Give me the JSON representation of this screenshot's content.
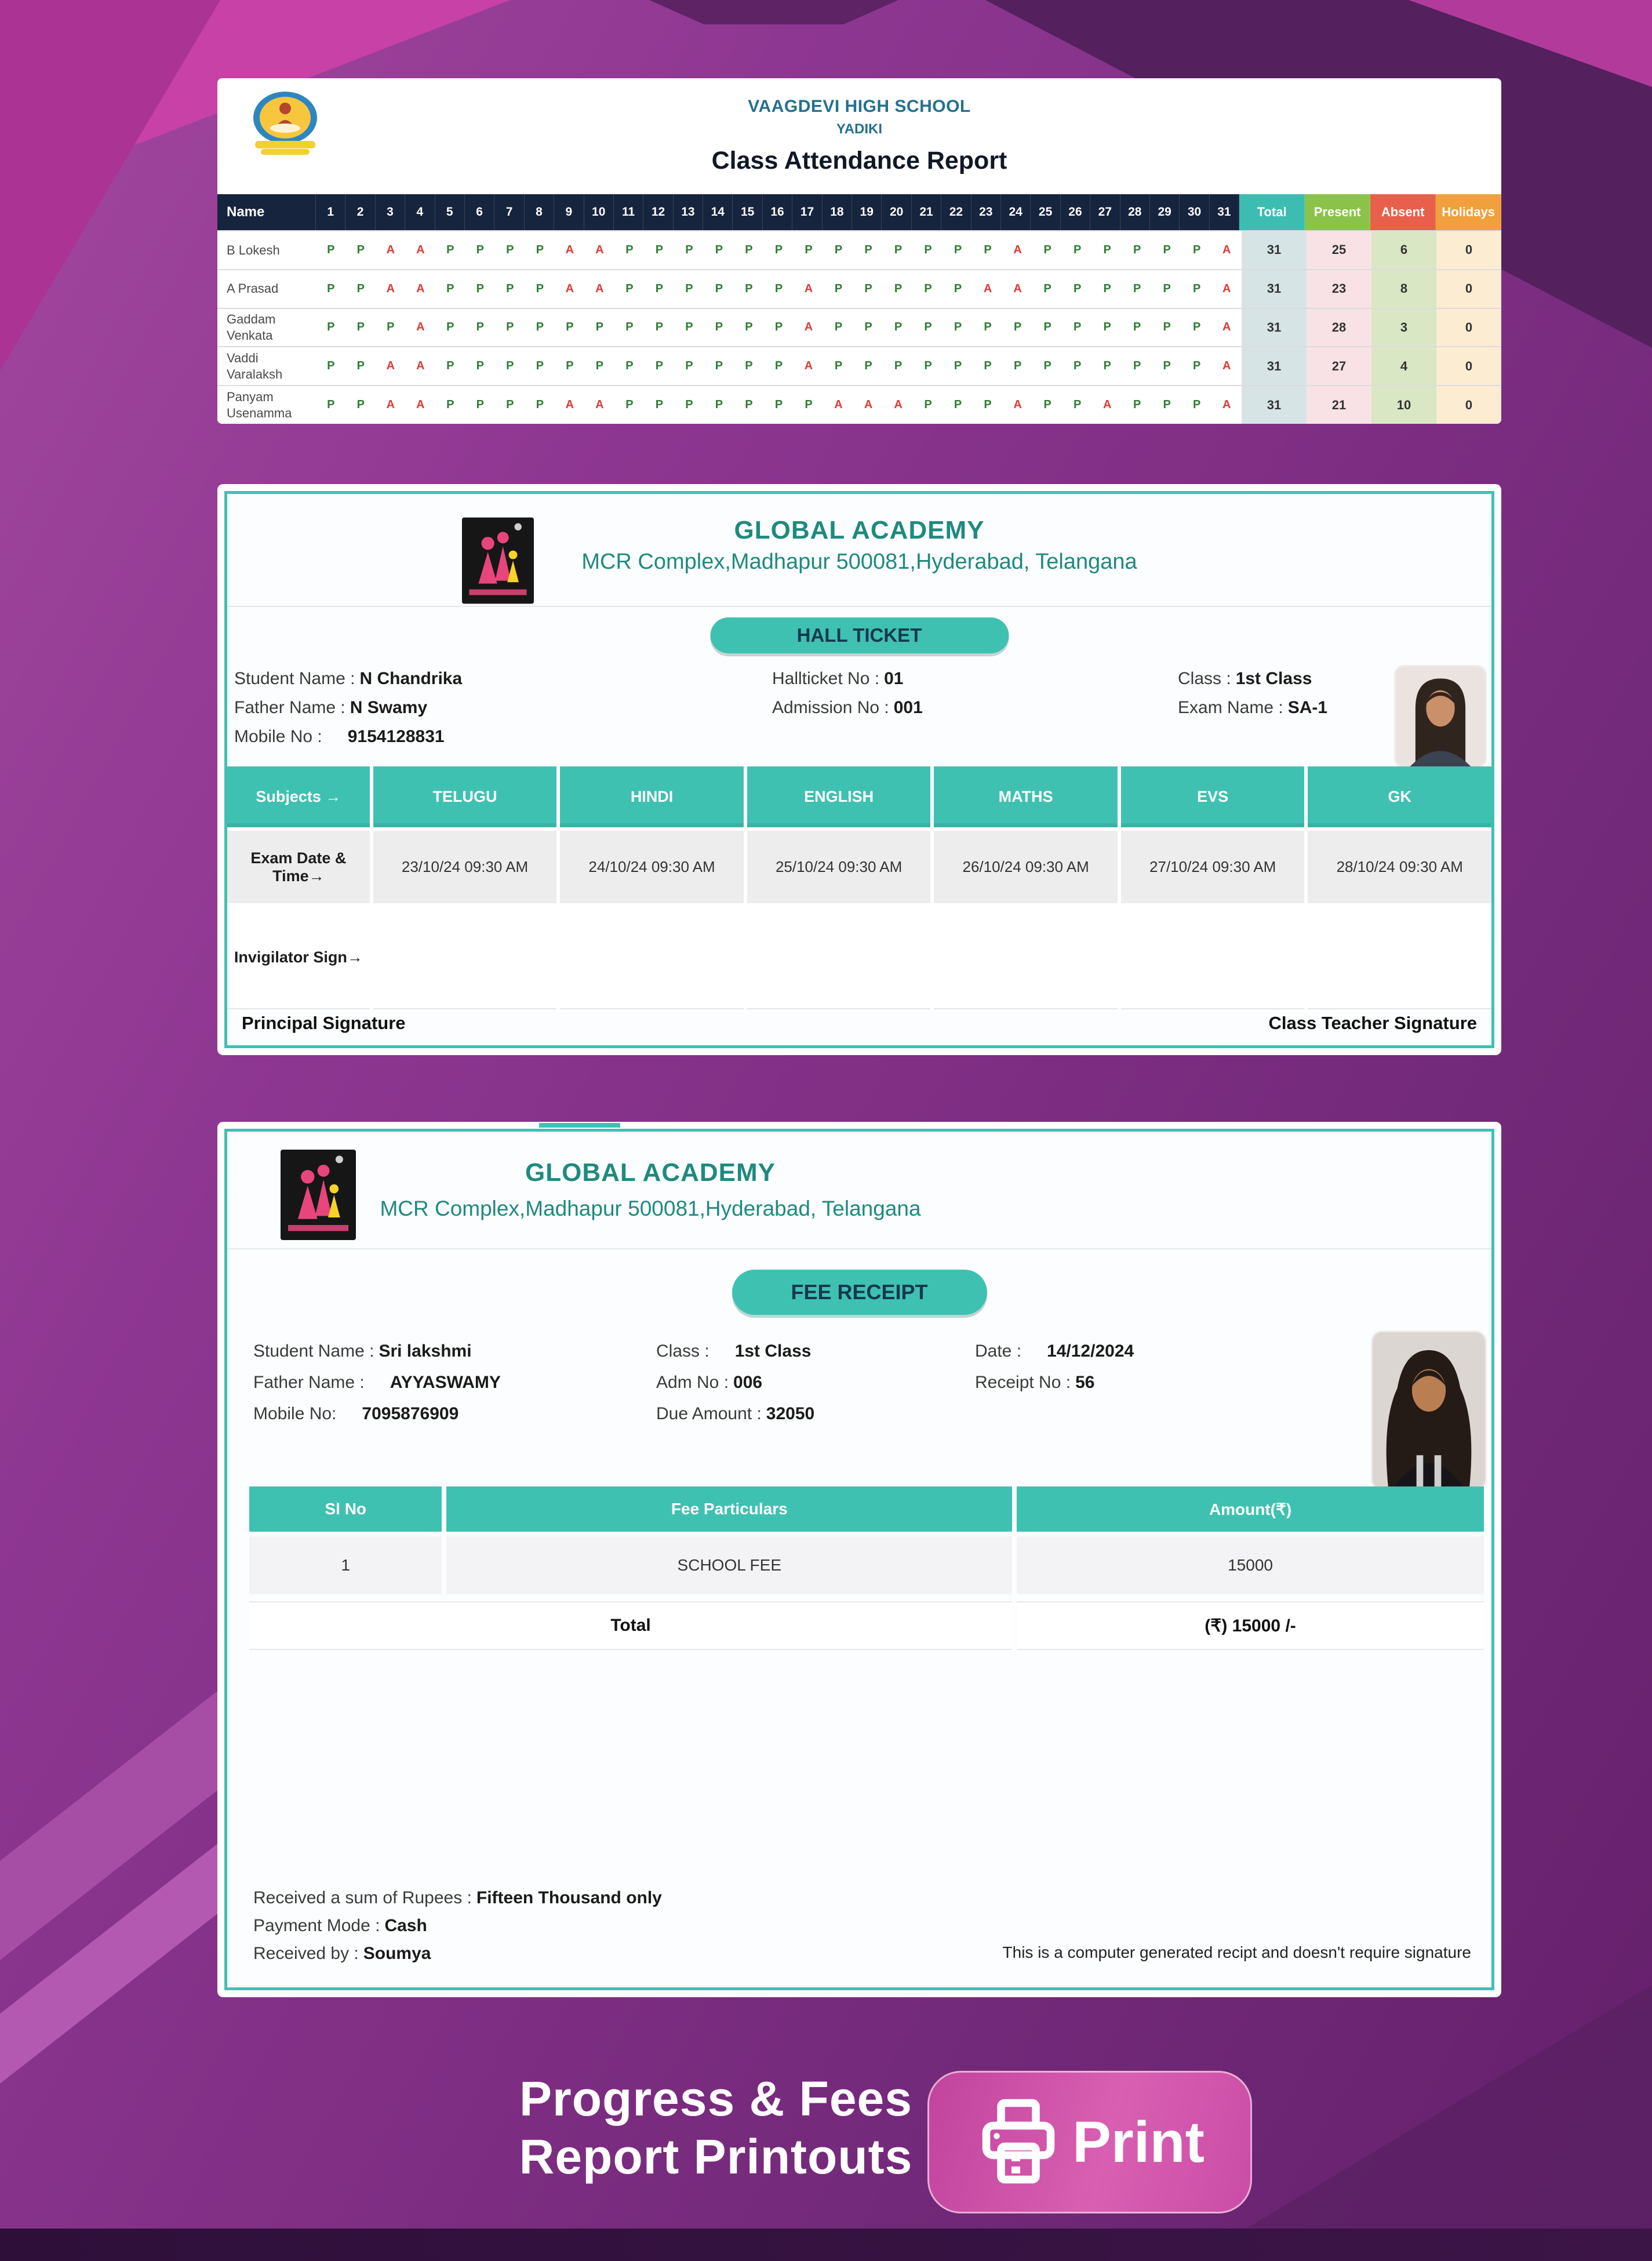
{
  "colors": {
    "accent_teal": "#3fc1b2",
    "table_navy": "#16243e",
    "present_green": "#2e7d32",
    "absent_red": "#e03a36",
    "print_pink": "#d054a8"
  },
  "attendance_report": {
    "school_name": "VAAGDEVI HIGH SCHOOL",
    "school_sub": "YADIKI",
    "title": "Class Attendance Report",
    "name_header": "Name",
    "day_headers": [
      "1",
      "2",
      "3",
      "4",
      "5",
      "6",
      "7",
      "8",
      "9",
      "10",
      "11",
      "12",
      "13",
      "14",
      "15",
      "16",
      "17",
      "18",
      "19",
      "20",
      "21",
      "22",
      "23",
      "24",
      "25",
      "26",
      "27",
      "28",
      "29",
      "30",
      "31"
    ],
    "summary_headers": [
      "Total",
      "Present",
      "Absent",
      "Holidays"
    ],
    "rows": [
      {
        "name": "B Lokesh",
        "days": [
          "P",
          "P",
          "A",
          "A",
          "P",
          "P",
          "P",
          "P",
          "A",
          "A",
          "P",
          "P",
          "P",
          "P",
          "P",
          "P",
          "P",
          "P",
          "P",
          "P",
          "P",
          "P",
          "P",
          "A",
          "P",
          "P",
          "P",
          "P",
          "P",
          "P",
          "A"
        ],
        "total": 31,
        "present": 25,
        "absent": 6,
        "holidays": 0
      },
      {
        "name": "A Prasad",
        "days": [
          "P",
          "P",
          "A",
          "A",
          "P",
          "P",
          "P",
          "P",
          "A",
          "A",
          "P",
          "P",
          "P",
          "P",
          "P",
          "P",
          "A",
          "P",
          "P",
          "P",
          "P",
          "P",
          "A",
          "A",
          "P",
          "P",
          "P",
          "P",
          "P",
          "P",
          "A"
        ],
        "total": 31,
        "present": 23,
        "absent": 8,
        "holidays": 0
      },
      {
        "name": "Gaddam Venkata",
        "days": [
          "P",
          "P",
          "P",
          "A",
          "P",
          "P",
          "P",
          "P",
          "P",
          "P",
          "P",
          "P",
          "P",
          "P",
          "P",
          "P",
          "A",
          "P",
          "P",
          "P",
          "P",
          "P",
          "P",
          "P",
          "P",
          "P",
          "P",
          "P",
          "P",
          "P",
          "A"
        ],
        "total": 31,
        "present": 28,
        "absent": 3,
        "holidays": 0
      },
      {
        "name": "Vaddi Varalaksh",
        "days": [
          "P",
          "P",
          "A",
          "A",
          "P",
          "P",
          "P",
          "P",
          "P",
          "P",
          "P",
          "P",
          "P",
          "P",
          "P",
          "P",
          "A",
          "P",
          "P",
          "P",
          "P",
          "P",
          "P",
          "P",
          "P",
          "P",
          "P",
          "P",
          "P",
          "P",
          "A"
        ],
        "total": 31,
        "present": 27,
        "absent": 4,
        "holidays": 0
      },
      {
        "name": "Panyam Usenamma",
        "days": [
          "P",
          "P",
          "A",
          "A",
          "P",
          "P",
          "P",
          "P",
          "A",
          "A",
          "P",
          "P",
          "P",
          "P",
          "P",
          "P",
          "P",
          "A",
          "A",
          "A",
          "P",
          "P",
          "P",
          "A",
          "P",
          "P",
          "A",
          "P",
          "P",
          "P",
          "A"
        ],
        "total": 31,
        "present": 21,
        "absent": 10,
        "holidays": 0
      }
    ]
  },
  "hall_ticket": {
    "school_name": "GLOBAL ACADEMY",
    "address": "MCR Complex,Madhapur 500081,Hyderabad, Telangana",
    "badge": "HALL TICKET",
    "info": {
      "student_name_label": "Student Name :",
      "student_name": "N Chandrika",
      "father_name_label": "Father Name :",
      "father_name": "N Swamy",
      "mobile_label": "Mobile No :",
      "mobile": "9154128831",
      "hallticket_no_label": "Hallticket No :",
      "hallticket_no": "01",
      "admission_no_label": "Admission No :",
      "admission_no": "001",
      "class_label": "Class :",
      "class": "1st Class",
      "exam_name_label": "Exam Name :",
      "exam_name": "SA-1"
    },
    "table": {
      "subjects_label": "Subjects →",
      "subjects": [
        "TELUGU",
        "HINDI",
        "ENGLISH",
        "MATHS",
        "EVS",
        "GK"
      ],
      "exam_row_label": "Exam Date & Time→",
      "exam_dates": [
        "23/10/24 09:30 AM",
        "24/10/24 09:30 AM",
        "25/10/24 09:30 AM",
        "26/10/24 09:30 AM",
        "27/10/24 09:30 AM",
        "28/10/24 09:30 AM"
      ],
      "invigilator_label": "Invigilator Sign→"
    },
    "principal_sign": "Principal Signature",
    "teacher_sign": "Class Teacher Signature"
  },
  "fee_receipt": {
    "school_name": "GLOBAL ACADEMY",
    "address": "MCR Complex,Madhapur 500081,Hyderabad, Telangana",
    "badge": "FEE RECEIPT",
    "info": {
      "student_name_label": "Student Name :",
      "student_name": "Sri lakshmi",
      "father_name_label": "Father Name :",
      "father_name": "AYYASWAMY",
      "mobile_label": "Mobile No:",
      "mobile": "7095876909",
      "class_label": "Class :",
      "class": "1st Class",
      "adm_no_label": "Adm No :",
      "adm_no": "006",
      "due_amount_label": "Due Amount :",
      "due_amount": "32050",
      "date_label": "Date :",
      "date": "14/12/2024",
      "receipt_no_label": "Receipt No :",
      "receipt_no": "56"
    },
    "table": {
      "headers": [
        "Sl No",
        "Fee Particulars",
        "Amount(₹)"
      ],
      "rows": [
        [
          "1",
          "SCHOOL FEE",
          "15000"
        ]
      ],
      "total_label": "Total",
      "total_amount": "(₹) 15000 /-"
    },
    "footer": {
      "received_label": "Received a sum of Rupees :",
      "received_value": "Fifteen Thousand only",
      "payment_label": "Payment Mode :",
      "payment_value": "Cash",
      "receivedby_label": "Received by :",
      "receivedby_value": "Soumya",
      "note": "This is a computer generated recipt and doesn't require signature"
    }
  },
  "footer": {
    "caption_line1": "Progress & Fees",
    "caption_line2": "Report Printouts",
    "print_label": "Print"
  }
}
